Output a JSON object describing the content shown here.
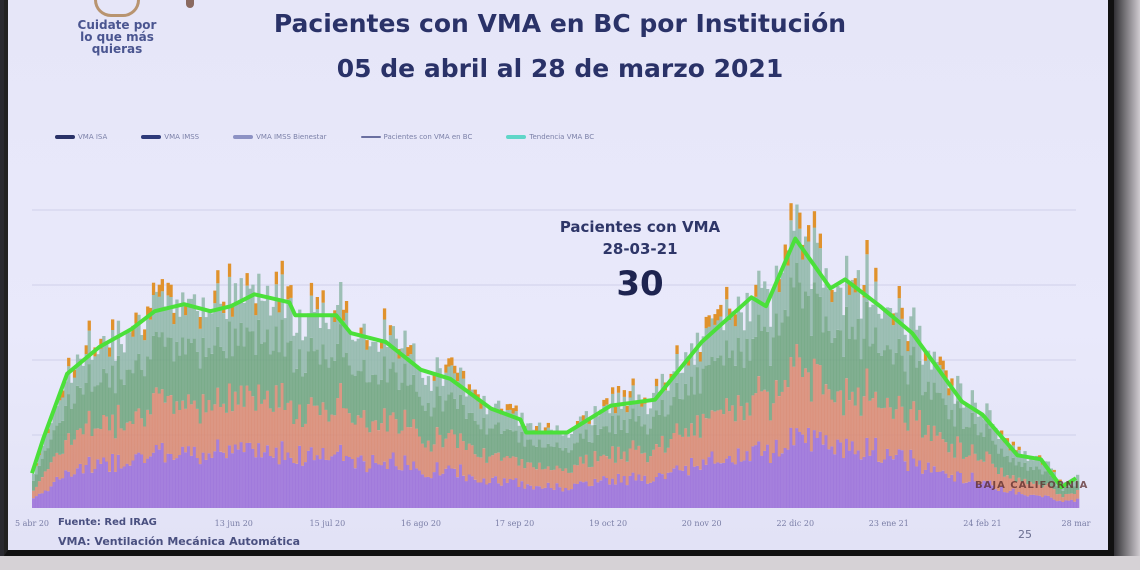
{
  "logo": {
    "text": "Cuidate por lo que más quieras"
  },
  "header": {
    "title": "Pacientes con VMA en BC por Institución",
    "subtitle": "05 de abril al 28 de marzo 2021"
  },
  "annotation": {
    "label": "Pacientes con VMA",
    "date": "28-03-21",
    "value": "30"
  },
  "footer": {
    "source": "Fuente: Red IRAG",
    "note": "VMA: Ventilación Mecánica Automática",
    "page": "25",
    "watermark": "BAJA CALIFORNIA"
  },
  "colors": {
    "trend": "#4be03a",
    "isa": "#9a6fd8",
    "imss": "#d98870",
    "bienestar": "#6fa57e",
    "other": "#8fb7a8",
    "top": "#e0922c",
    "title": "#2a3268"
  },
  "chart_data": {
    "type": "area",
    "title": "Pacientes con VMA en BC por Institución",
    "subtitle": "05 de abril al 28 de marzo 2021",
    "legend_position": "top-left",
    "grid": true,
    "legend": [
      {
        "name": "VMA ISA",
        "color": "#2a3268"
      },
      {
        "name": "VMA IMSS",
        "color": "#2e3a7a"
      },
      {
        "name": "VMA IMSS Bienestar",
        "color": "#8d92c4"
      },
      {
        "name": "Pacientes con VMA en BC",
        "color": "#6a6fa0"
      },
      {
        "name": "Tendencia VMA BC",
        "color": "#5fd6c8"
      }
    ],
    "x_ticks": [
      "5 abr 20",
      "13 jun 20",
      "15 jul 20",
      "16 ago 20",
      "17 sep 20",
      "19 oct 20",
      "20 nov 20",
      "22 dic 20",
      "23 ene 21",
      "24 feb 21",
      "28 mar"
    ],
    "x_tick_dates": [
      "2020-04-05",
      "2020-06-13",
      "2020-07-15",
      "2020-08-16",
      "2020-09-17",
      "2020-10-19",
      "2020-11-20",
      "2020-12-22",
      "2021-01-23",
      "2021-02-24",
      "2021-03-28"
    ],
    "ylim": [
      0,
      330
    ],
    "series": [
      {
        "name": "Tendencia VMA BC",
        "x": [
          "2020-04-05",
          "2020-04-09",
          "2020-04-17",
          "2020-04-28",
          "2020-05-09",
          "2020-05-17",
          "2020-05-27",
          "2020-06-05",
          "2020-06-12",
          "2020-06-20",
          "2020-07-02",
          "2020-07-04",
          "2020-07-18",
          "2020-07-23",
          "2020-08-04",
          "2020-08-16",
          "2020-08-26",
          "2020-09-09",
          "2020-09-19",
          "2020-09-21",
          "2020-10-05",
          "2020-10-20",
          "2020-11-04",
          "2020-11-20",
          "2020-12-07",
          "2020-12-12",
          "2020-12-22",
          "2021-01-03",
          "2021-01-08",
          "2021-01-20",
          "2021-01-31",
          "2021-02-17",
          "2021-02-24",
          "2021-03-08",
          "2021-03-16",
          "2021-03-23",
          "2021-03-28"
        ],
        "values": [
          35,
          71,
          135,
          162,
          180,
          198,
          205,
          198,
          203,
          215,
          207,
          194,
          194,
          176,
          167,
          139,
          130,
          100,
          89,
          76,
          76,
          103,
          109,
          167,
          212,
          203,
          271,
          221,
          230,
          203,
          176,
          107,
          94,
          53,
          49,
          21,
          30
        ]
      }
    ]
  }
}
